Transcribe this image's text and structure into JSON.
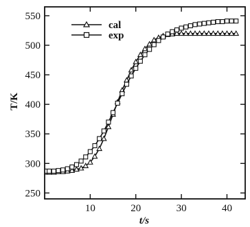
{
  "chart_data": {
    "type": "line",
    "title": "",
    "xlabel": "t/s",
    "ylabel": "T/K",
    "xlim": [
      0,
      44
    ],
    "ylim": [
      240,
      565
    ],
    "x_ticks": [
      10,
      20,
      30,
      40
    ],
    "x_tick_labels": [
      "10",
      "20",
      "30",
      "40"
    ],
    "y_ticks": [
      250,
      300,
      350,
      400,
      450,
      500,
      550
    ],
    "y_tick_labels": [
      "250",
      "300",
      "350",
      "400",
      "450",
      "500",
      "550"
    ],
    "grid": false,
    "legend_position": "top-left",
    "series": [
      {
        "name": "cal",
        "marker": "triangle",
        "color": "#111111",
        "x": [
          0.5,
          1,
          2,
          3,
          4,
          5,
          6,
          7,
          8,
          9,
          10,
          11,
          12,
          13,
          14,
          15,
          16,
          17,
          18,
          19,
          20,
          21,
          22,
          23,
          24,
          25,
          26,
          27,
          28,
          29,
          30,
          31,
          32,
          33,
          34,
          35,
          36,
          37,
          38,
          39,
          40,
          41,
          42
        ],
        "y": [
          285,
          285,
          285,
          286,
          286,
          287,
          288,
          290,
          292,
          296,
          302,
          312,
          325,
          342,
          362,
          383,
          404,
          424,
          441,
          458,
          472,
          484,
          494,
          502,
          509,
          513,
          516,
          518,
          519,
          520,
          520,
          520,
          520,
          520,
          520,
          520,
          520,
          520,
          520,
          520,
          520,
          520,
          520
        ]
      },
      {
        "name": "exp",
        "marker": "square",
        "color": "#111111",
        "x": [
          0.5,
          1,
          2,
          3,
          4,
          5,
          6,
          7,
          8,
          9,
          10,
          11,
          12,
          13,
          14,
          15,
          16,
          17,
          18,
          19,
          20,
          21,
          22,
          23,
          24,
          25,
          26,
          27,
          28,
          29,
          30,
          31,
          32,
          33,
          34,
          35,
          36,
          37,
          38,
          39,
          40,
          41,
          42
        ],
        "y": [
          287,
          287,
          287,
          288,
          289,
          291,
          294,
          298,
          304,
          311,
          320,
          330,
          342,
          355,
          370,
          386,
          402,
          418,
          434,
          448,
          461,
          473,
          484,
          493,
          501,
          508,
          514,
          519,
          523,
          526,
          529,
          531,
          533,
          535,
          536,
          537,
          538,
          539,
          540,
          540,
          541,
          541,
          541
        ]
      }
    ]
  }
}
